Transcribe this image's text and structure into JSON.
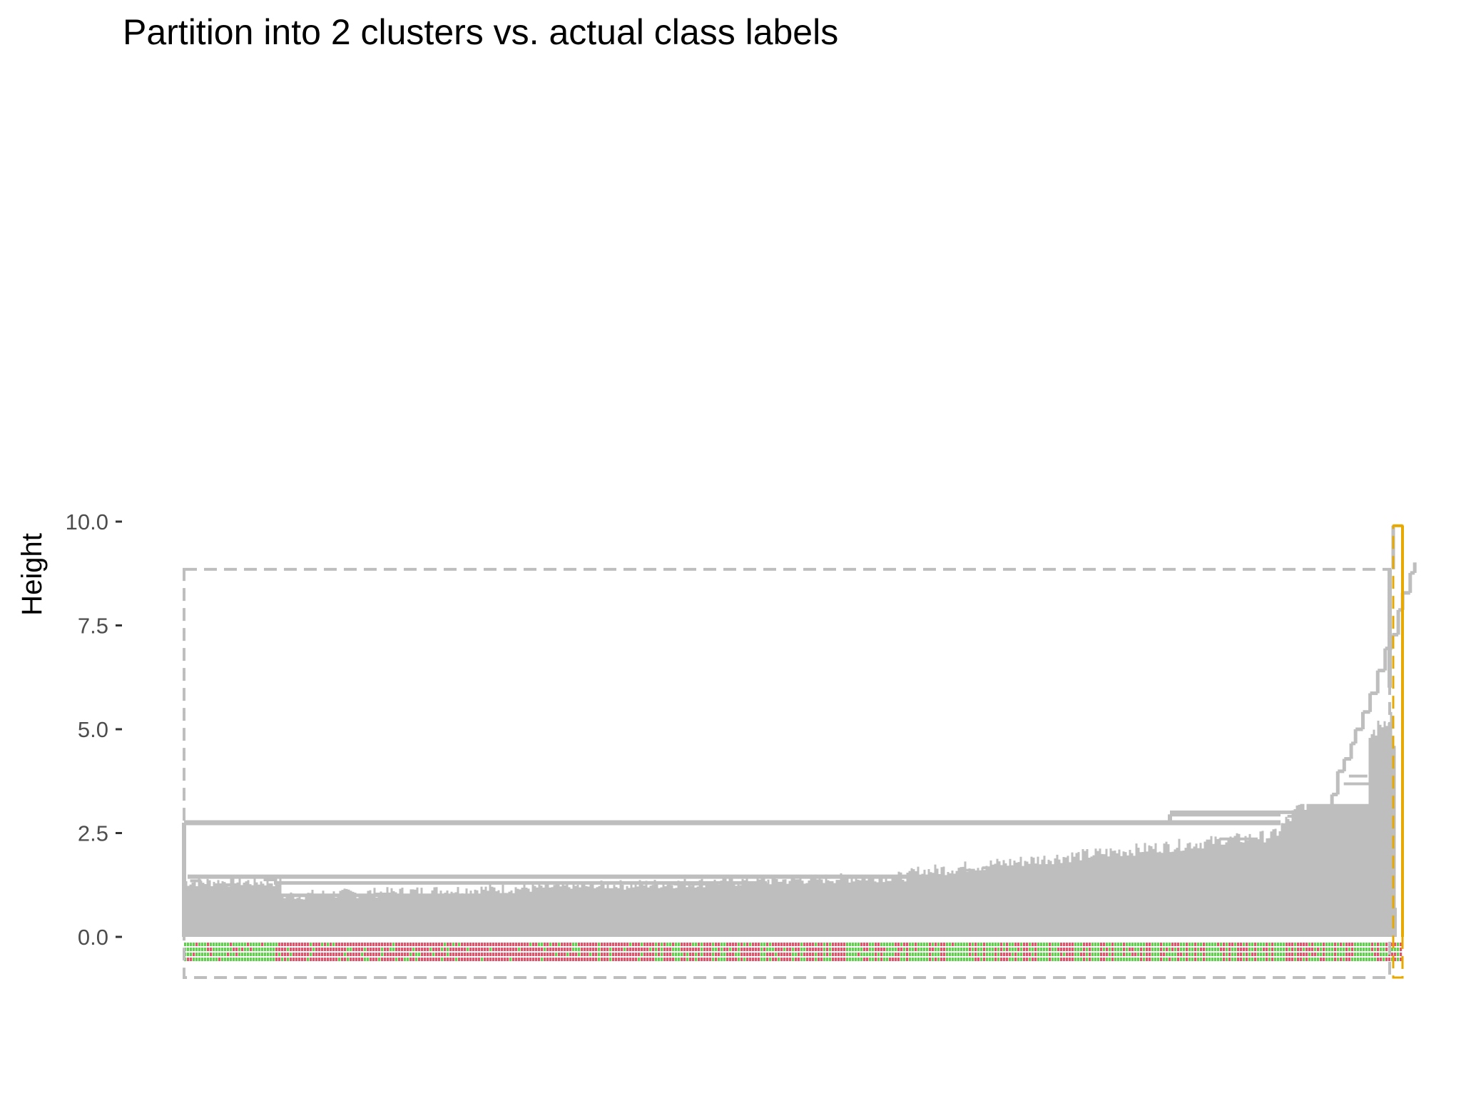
{
  "chart_data": {
    "type": "dendrogram",
    "title": "Partition into 2 clusters vs. actual class labels",
    "xlabel": "",
    "ylabel": "Height",
    "ylim": [
      0,
      10
    ],
    "y_ticks": [
      "0.0",
      "2.5",
      "5.0",
      "7.5",
      "10.0"
    ],
    "y_tick_values": [
      0,
      2.5,
      5,
      7.5,
      10
    ],
    "grid": false,
    "root_height": 9.9,
    "cut_height": 8.85,
    "clusters": [
      {
        "id": 1,
        "color": "#BEBEBE",
        "merge_height": 8.85
      },
      {
        "id": 2,
        "color": "#E7A800",
        "merge_height": 9.9
      }
    ],
    "main_split_height": 2.75,
    "left_block_height": 1.45,
    "label_colors": {
      "class_a": "#DF536B",
      "class_b": "#61D04F"
    },
    "colors": {
      "branch": "#BEBEBE",
      "outlier_branch": "#E7A800",
      "cut_box": "#BEBEBE"
    }
  }
}
